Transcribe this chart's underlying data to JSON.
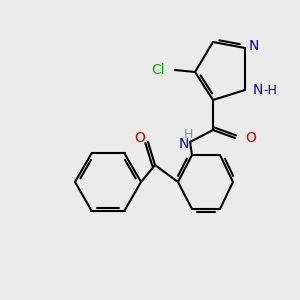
{
  "background_color": "#ebebeb",
  "bond_color": "#000000",
  "bond_width": 1.5,
  "atom_colors": {
    "N": "#0000cc",
    "O": "#cc0000",
    "Cl": "#00aa00",
    "H_amide": "#5f9ea0",
    "C": "#000000"
  },
  "font_size": 10,
  "font_size_small": 9
}
